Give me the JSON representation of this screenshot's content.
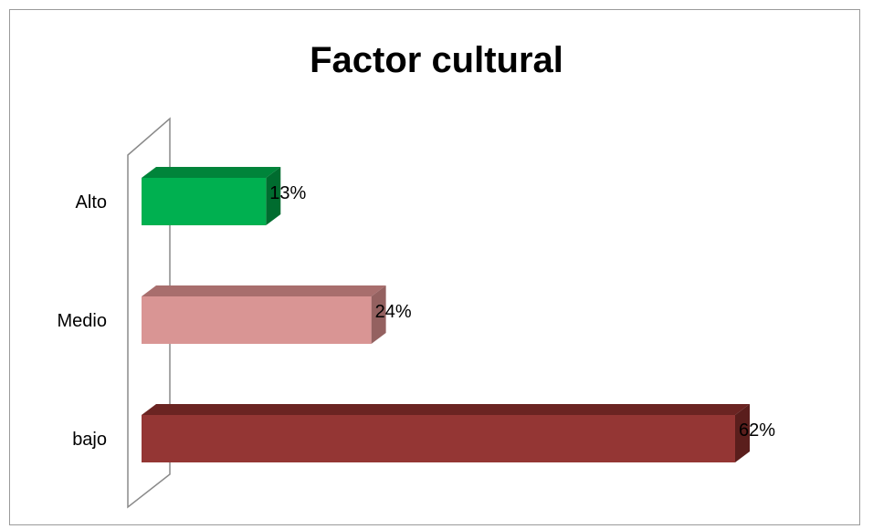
{
  "chart_data": {
    "type": "bar",
    "orientation": "horizontal",
    "title": "Factor cultural",
    "categories": [
      "Alto",
      "Medio",
      "bajo"
    ],
    "values": [
      13,
      24,
      62
    ],
    "value_labels": [
      "13%",
      "24%",
      "62%"
    ],
    "colors": {
      "Alto": {
        "front": "#00b050",
        "top": "#00843a",
        "side": "#006c2f"
      },
      "Medio": {
        "front": "#d99594",
        "top": "#a86e6d",
        "side": "#946160"
      },
      "bajo": {
        "front": "#943634",
        "top": "#6b2422",
        "side": "#5a1e1c"
      }
    },
    "xlim": [
      0,
      62
    ],
    "style": "3d"
  }
}
